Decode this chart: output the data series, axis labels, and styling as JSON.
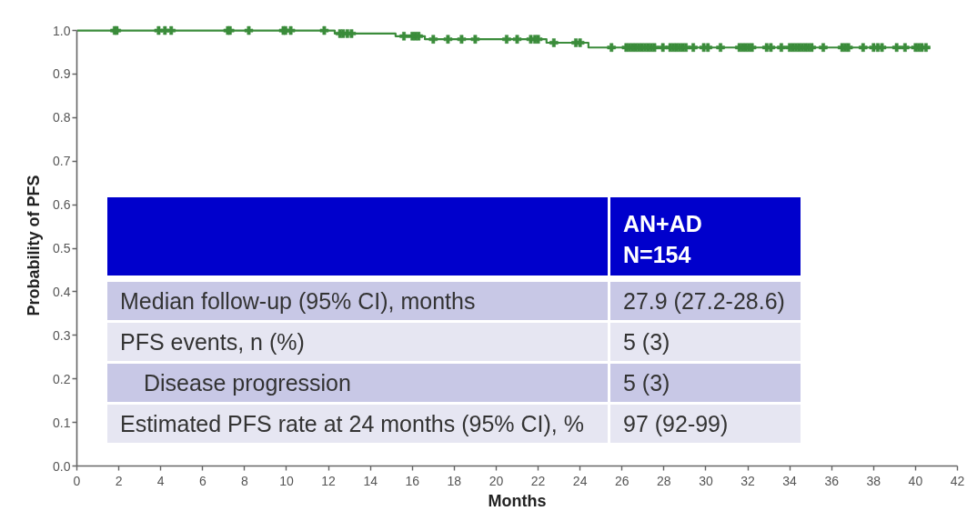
{
  "chart_data": {
    "type": "step",
    "xlabel": "Months",
    "ylabel": "Probability of PFS",
    "xlim": [
      0,
      42
    ],
    "xticks": [
      0,
      2,
      4,
      6,
      8,
      10,
      12,
      14,
      16,
      18,
      20,
      22,
      24,
      26,
      28,
      30,
      32,
      34,
      36,
      38,
      40,
      42
    ],
    "ylim": [
      0,
      1
    ],
    "yticks": [
      {
        "value": 0,
        "label": "0.0"
      },
      0.1,
      0.2,
      0.3,
      0.4,
      0.5,
      0.6,
      0.7,
      0.8,
      0.9,
      {
        "value": 1,
        "label": "1.0"
      }
    ],
    "series": [
      {
        "color": "#3b8c3b",
        "x": [
          0,
          12.3,
          15.2,
          16.6,
          22.4,
          24.4,
          40.7
        ],
        "values": [
          1,
          0.993,
          0.987,
          0.98,
          0.972,
          0.961,
          0.961
        ]
      },
      {
        "type": "scatter",
        "marker": "cross",
        "color": "#3b8c3b",
        "x": [
          1.8,
          1.9,
          3.9,
          4.2,
          4.5,
          7.2,
          7.3,
          8.2,
          9.85,
          9.95,
          10.2,
          11.8,
          12.55,
          12.7,
          12.9,
          13.1,
          15.6,
          16.0,
          16.15,
          16.3,
          17.0,
          17.7,
          18.35,
          19.0,
          20.5,
          21.0,
          21.65,
          21.85,
          22.0,
          22.75,
          23.8,
          24.0,
          25.5,
          26.2,
          26.35,
          26.5,
          26.65,
          26.8,
          26.95,
          27.1,
          27.25,
          27.4,
          27.55,
          27.95,
          28.3,
          28.45,
          28.6,
          28.75,
          28.9,
          29.05,
          29.4,
          29.9,
          30.1,
          30.7,
          31.6,
          31.75,
          31.9,
          32.05,
          32.2,
          32.9,
          33.1,
          33.6,
          34.0,
          34.15,
          34.3,
          34.45,
          34.6,
          34.75,
          34.9,
          35.05,
          35.6,
          36.5,
          36.65,
          36.8,
          37.5,
          38.0,
          38.2,
          38.4,
          39.1,
          39.5,
          40.0,
          40.15,
          40.3,
          40.5
        ],
        "values": [
          1,
          1,
          1,
          1,
          1,
          1,
          1,
          1,
          1,
          1,
          1,
          1,
          0.993,
          0.993,
          0.993,
          0.993,
          0.987,
          0.987,
          0.987,
          0.987,
          0.98,
          0.98,
          0.98,
          0.98,
          0.98,
          0.98,
          0.98,
          0.98,
          0.98,
          0.972,
          0.972,
          0.972,
          0.961,
          0.961,
          0.961,
          0.961,
          0.961,
          0.961,
          0.961,
          0.961,
          0.961,
          0.961,
          0.961,
          0.961,
          0.961,
          0.961,
          0.961,
          0.961,
          0.961,
          0.961,
          0.961,
          0.961,
          0.961,
          0.961,
          0.961,
          0.961,
          0.961,
          0.961,
          0.961,
          0.961,
          0.961,
          0.961,
          0.961,
          0.961,
          0.961,
          0.961,
          0.961,
          0.961,
          0.961,
          0.961,
          0.961,
          0.961,
          0.961,
          0.961,
          0.961,
          0.961,
          0.961,
          0.961,
          0.961,
          0.961,
          0.961,
          0.961,
          0.961,
          0.961
        ]
      }
    ],
    "annotations": [
      "AN+AD",
      "N=154",
      "Median follow-up (95% CI), months",
      "27.9 (27.2-28.6)",
      "PFS events, n (%)",
      "5 (3)",
      "Disease progression",
      "5 (3)",
      "Estimated PFS rate at 24 months (95% CI), %",
      "97 (92-99)"
    ]
  }
}
